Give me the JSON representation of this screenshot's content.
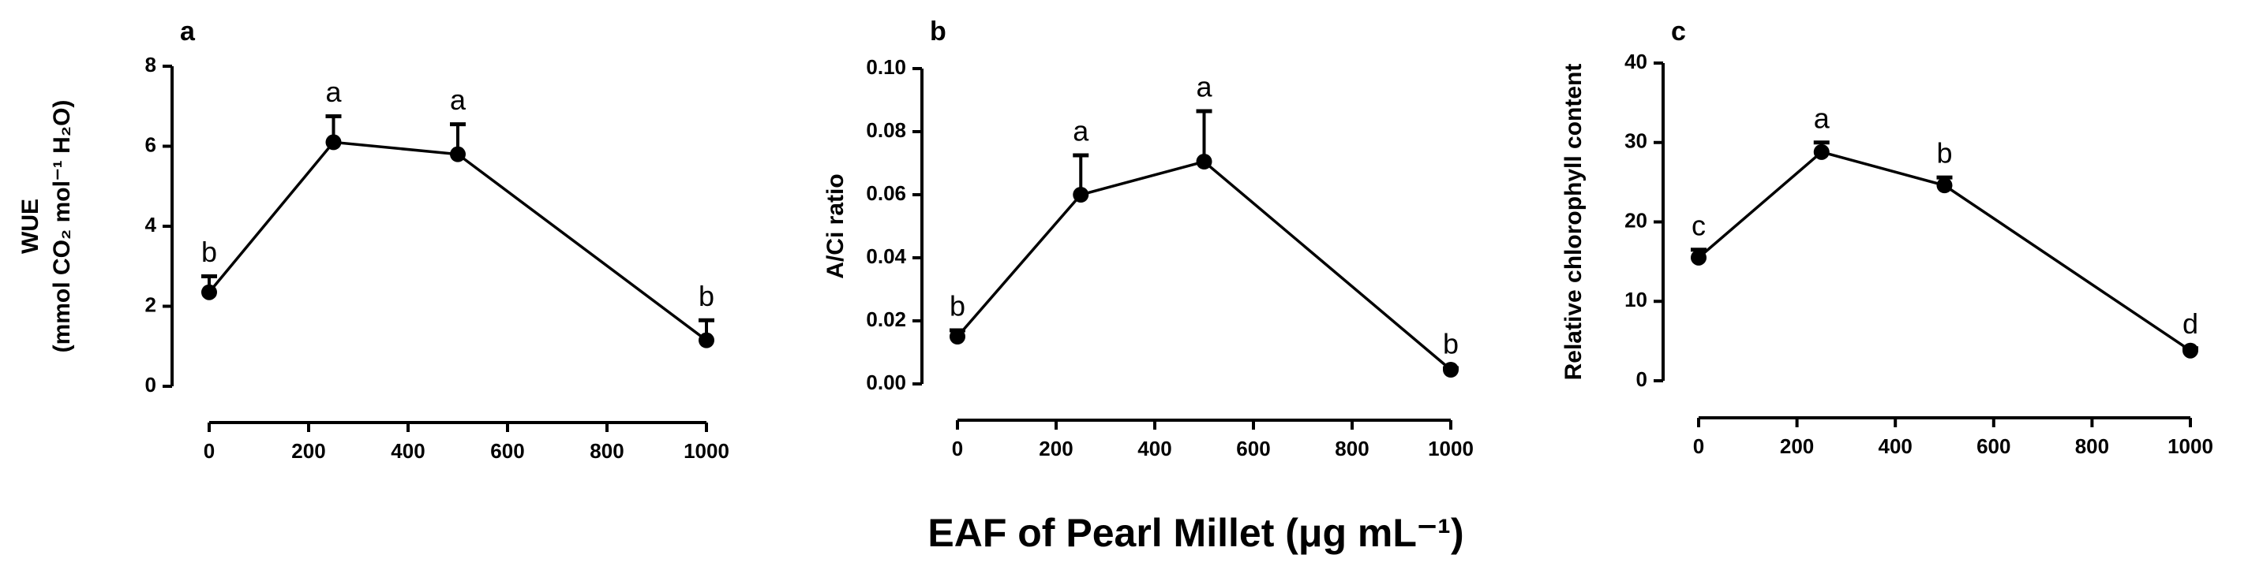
{
  "chart_data": [
    {
      "type": "line",
      "panel": "a",
      "ylabel": [
        "WUE",
        "(mmol CO₂ mol⁻¹ H₂O)"
      ],
      "x": [
        0,
        250,
        500,
        1000
      ],
      "values": [
        2.35,
        6.1,
        5.8,
        1.15
      ],
      "errors": [
        0.4,
        0.65,
        0.75,
        0.5
      ],
      "letters": [
        "b",
        "a",
        "a",
        "b"
      ],
      "color": "#000000",
      "xlim": [
        0,
        1000
      ],
      "xticks": [
        0,
        200,
        400,
        600,
        800,
        1000
      ],
      "ylim": [
        0,
        8
      ],
      "yticks": [
        0,
        2,
        4,
        6,
        8
      ]
    },
    {
      "type": "line",
      "panel": "b",
      "ylabel": [
        "A/Ci ratio"
      ],
      "x": [
        0,
        250,
        500,
        1000
      ],
      "values": [
        0.015,
        0.06,
        0.0705,
        0.0045
      ],
      "errors": [
        0.002,
        0.0125,
        0.016,
        0.0005
      ],
      "letters": [
        "b",
        "a",
        "a",
        "b"
      ],
      "color": "#000000",
      "xlim": [
        0,
        1000
      ],
      "xticks": [
        0,
        200,
        400,
        600,
        800,
        1000
      ],
      "ylim": [
        0,
        0.1
      ],
      "yticks": [
        {
          "value": 0,
          "label": "0.00"
        },
        {
          "value": 0.02,
          "label": "0.02"
        },
        {
          "value": 0.04,
          "label": "0.04"
        },
        {
          "value": 0.06,
          "label": "0.06"
        },
        {
          "value": 0.08,
          "label": "0.08"
        },
        {
          "value": 0.1,
          "label": "0.10"
        }
      ]
    },
    {
      "type": "line",
      "panel": "c",
      "ylabel": [
        "Relative chlorophyll content"
      ],
      "x": [
        0,
        250,
        500,
        1000
      ],
      "values": [
        15.5,
        28.8,
        24.6,
        3.8
      ],
      "errors": [
        1.0,
        1.2,
        1.0,
        0.3
      ],
      "letters": [
        "c",
        "a",
        "b",
        "d"
      ],
      "color": "#000000",
      "xlim": [
        0,
        1000
      ],
      "xticks": [
        0,
        200,
        400,
        600,
        800,
        1000
      ],
      "ylim": [
        0,
        40
      ],
      "yticks": [
        0,
        10,
        20,
        30,
        40
      ]
    }
  ],
  "figure_xlabel": "EAF of Pearl Millet (μg mL⁻¹)"
}
